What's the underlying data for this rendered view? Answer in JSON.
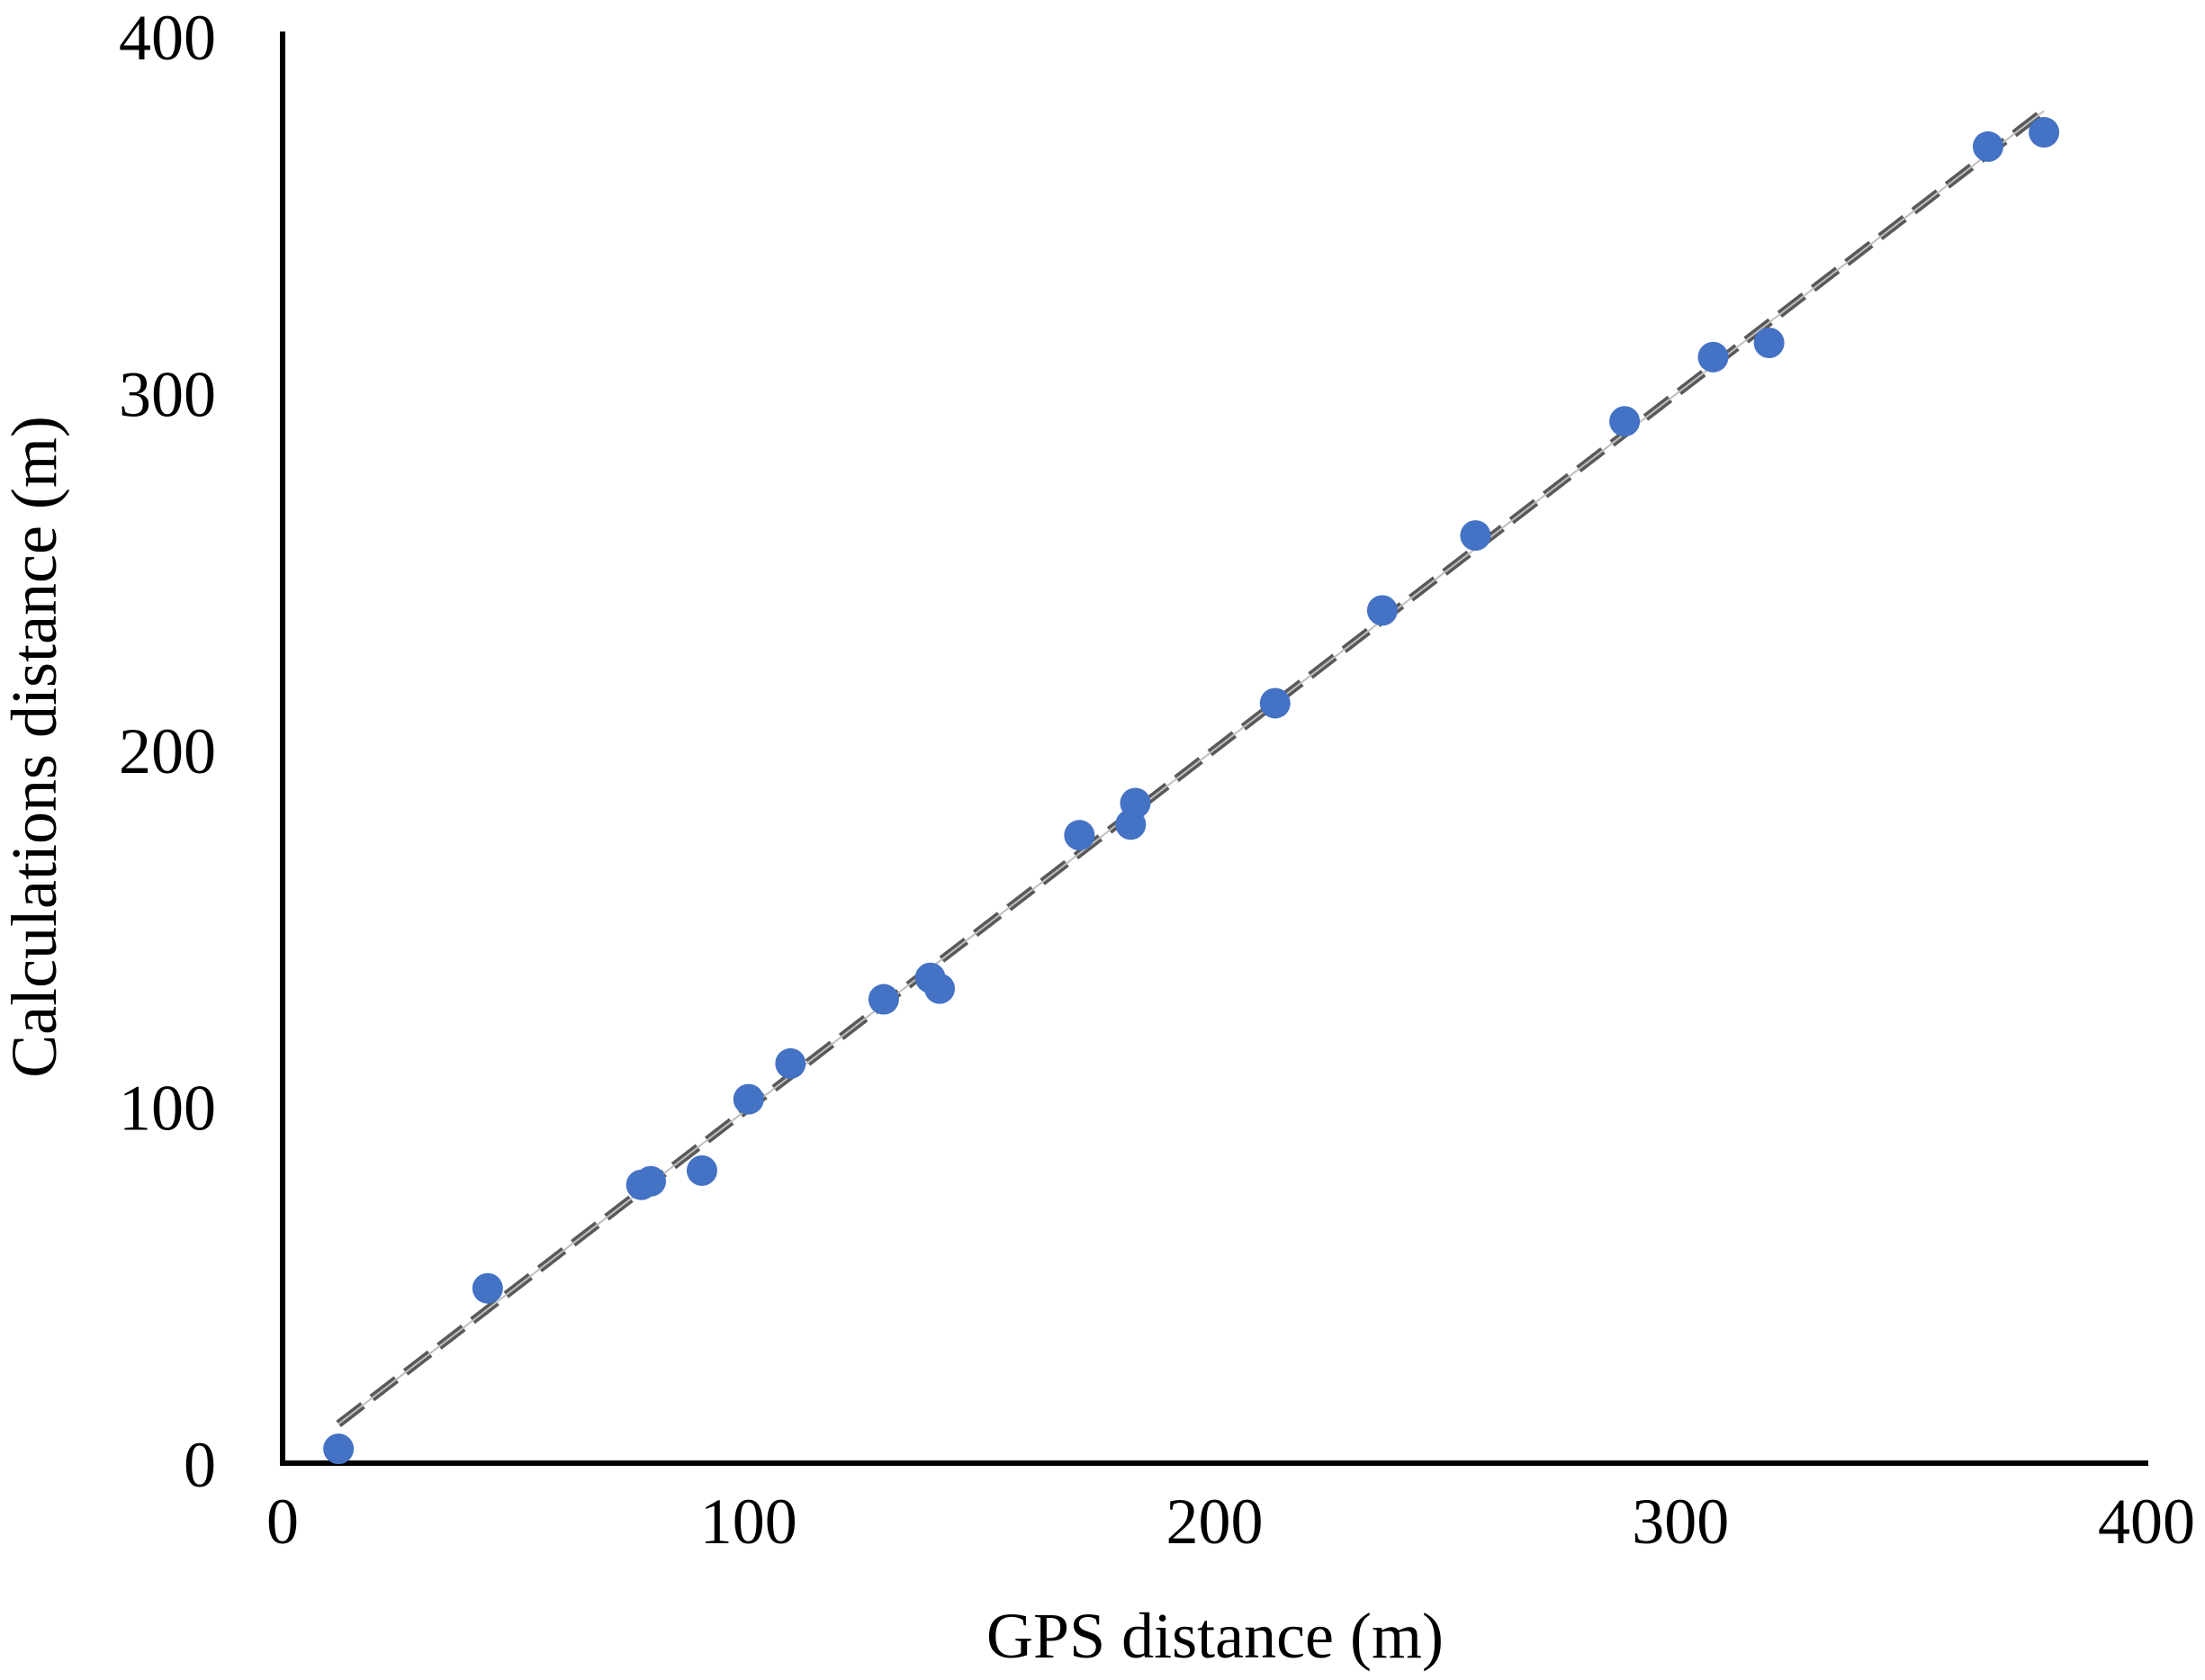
{
  "chart_data": {
    "type": "scatter",
    "title": "",
    "xlabel": "GPS distance (m)",
    "ylabel": "Calculations distance (m)",
    "xlim": [
      0,
      400
    ],
    "ylim": [
      0,
      400
    ],
    "x_ticks": [
      "0",
      "100",
      "200",
      "300",
      "400"
    ],
    "y_ticks": [
      "0",
      "100",
      "200",
      "300",
      "400"
    ],
    "grid": false,
    "legend": "none",
    "marker_color": "#4472C4",
    "trendline_color": "#595959",
    "series": [
      {
        "points": [
          {
            "x": 12,
            "y": 4
          },
          {
            "x": 44,
            "y": 49
          },
          {
            "x": 77,
            "y": 78
          },
          {
            "x": 79,
            "y": 79
          },
          {
            "x": 90,
            "y": 82
          },
          {
            "x": 100,
            "y": 102
          },
          {
            "x": 109,
            "y": 112
          },
          {
            "x": 129,
            "y": 130
          },
          {
            "x": 139,
            "y": 136
          },
          {
            "x": 141,
            "y": 133
          },
          {
            "x": 171,
            "y": 176
          },
          {
            "x": 182,
            "y": 179
          },
          {
            "x": 183,
            "y": 185
          },
          {
            "x": 213,
            "y": 213
          },
          {
            "x": 236,
            "y": 239
          },
          {
            "x": 256,
            "y": 260
          },
          {
            "x": 288,
            "y": 292
          },
          {
            "x": 307,
            "y": 310
          },
          {
            "x": 319,
            "y": 314
          },
          {
            "x": 366,
            "y": 369
          },
          {
            "x": 378,
            "y": 373
          }
        ]
      }
    ],
    "trendline": {
      "style": "dashed",
      "x": [
        12,
        378
      ],
      "y": [
        11,
        379
      ]
    }
  }
}
